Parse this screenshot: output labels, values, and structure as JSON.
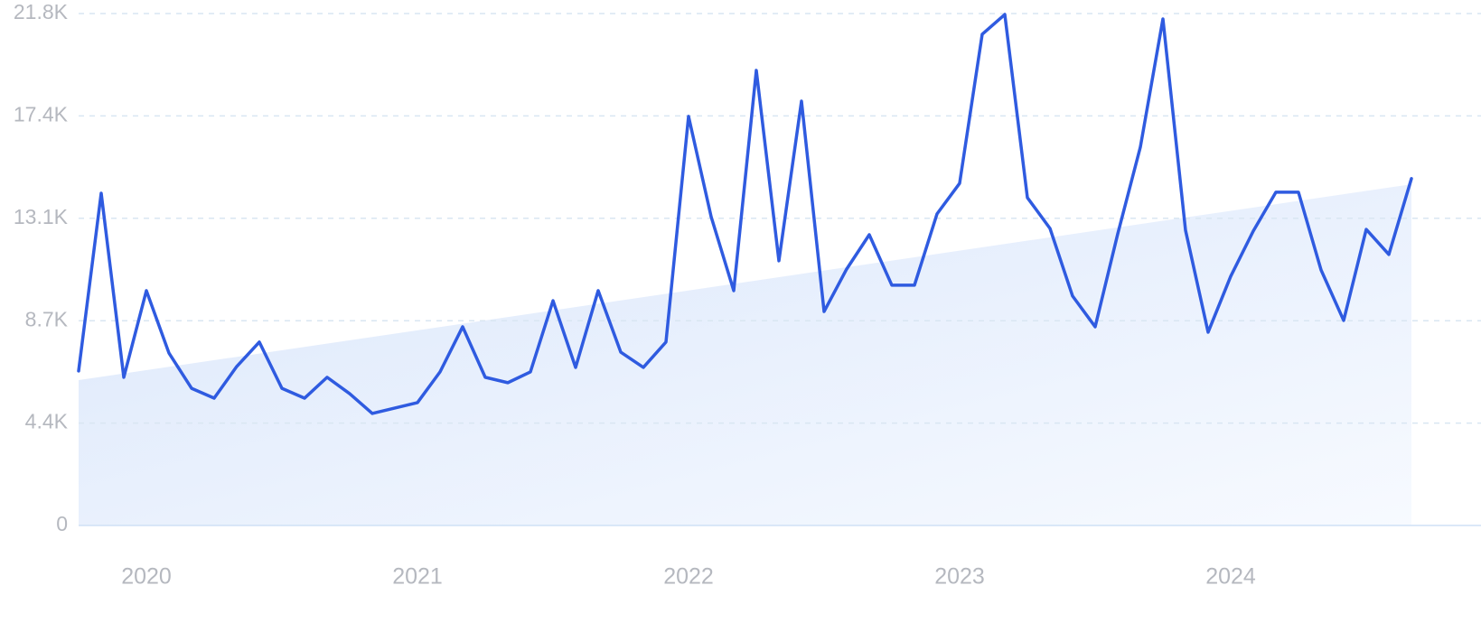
{
  "chart_data": {
    "type": "line",
    "categories": [
      null,
      null,
      null,
      "2020",
      null,
      null,
      null,
      null,
      null,
      null,
      null,
      null,
      null,
      null,
      null,
      "2021",
      null,
      null,
      null,
      null,
      null,
      null,
      null,
      null,
      null,
      null,
      null,
      "2022",
      null,
      null,
      null,
      null,
      null,
      null,
      null,
      null,
      null,
      null,
      null,
      "2023",
      null,
      null,
      null,
      null,
      null,
      null,
      null,
      null,
      null,
      null,
      null,
      "2024",
      null,
      null,
      null,
      null,
      null,
      null,
      null,
      null
    ],
    "values": [
      6580,
      14150,
      6310,
      10000,
      7340,
      5840,
      5420,
      6770,
      7810,
      5840,
      5420,
      6310,
      5610,
      4770,
      5000,
      5230,
      6540,
      8460,
      6310,
      6080,
      6540,
      9570,
      6730,
      10000,
      7380,
      6730,
      7810,
      17420,
      13150,
      10000,
      19380,
      11270,
      18070,
      9110,
      10920,
      12380,
      10230,
      10230,
      13270,
      14570,
      20920,
      21760,
      13960,
      12650,
      9770,
      8460,
      12420,
      16110,
      21570,
      12570,
      8230,
      10610,
      12540,
      14190,
      14190,
      10880,
      8730,
      12610,
      11540,
      14770
    ],
    "color": "#2f5be0",
    "trend": [
      6190,
      14530
    ],
    "ylim": [
      0,
      21800
    ],
    "yticks": [
      0,
      {
        "value": 4360,
        "label": "4.4K"
      },
      {
        "value": 8720,
        "label": "8.7K"
      },
      {
        "value": 13080,
        "label": "13.1K"
      },
      {
        "value": 17440,
        "label": "17.4K"
      },
      {
        "value": 21800,
        "label": "21.8K"
      }
    ],
    "grid": true
  }
}
